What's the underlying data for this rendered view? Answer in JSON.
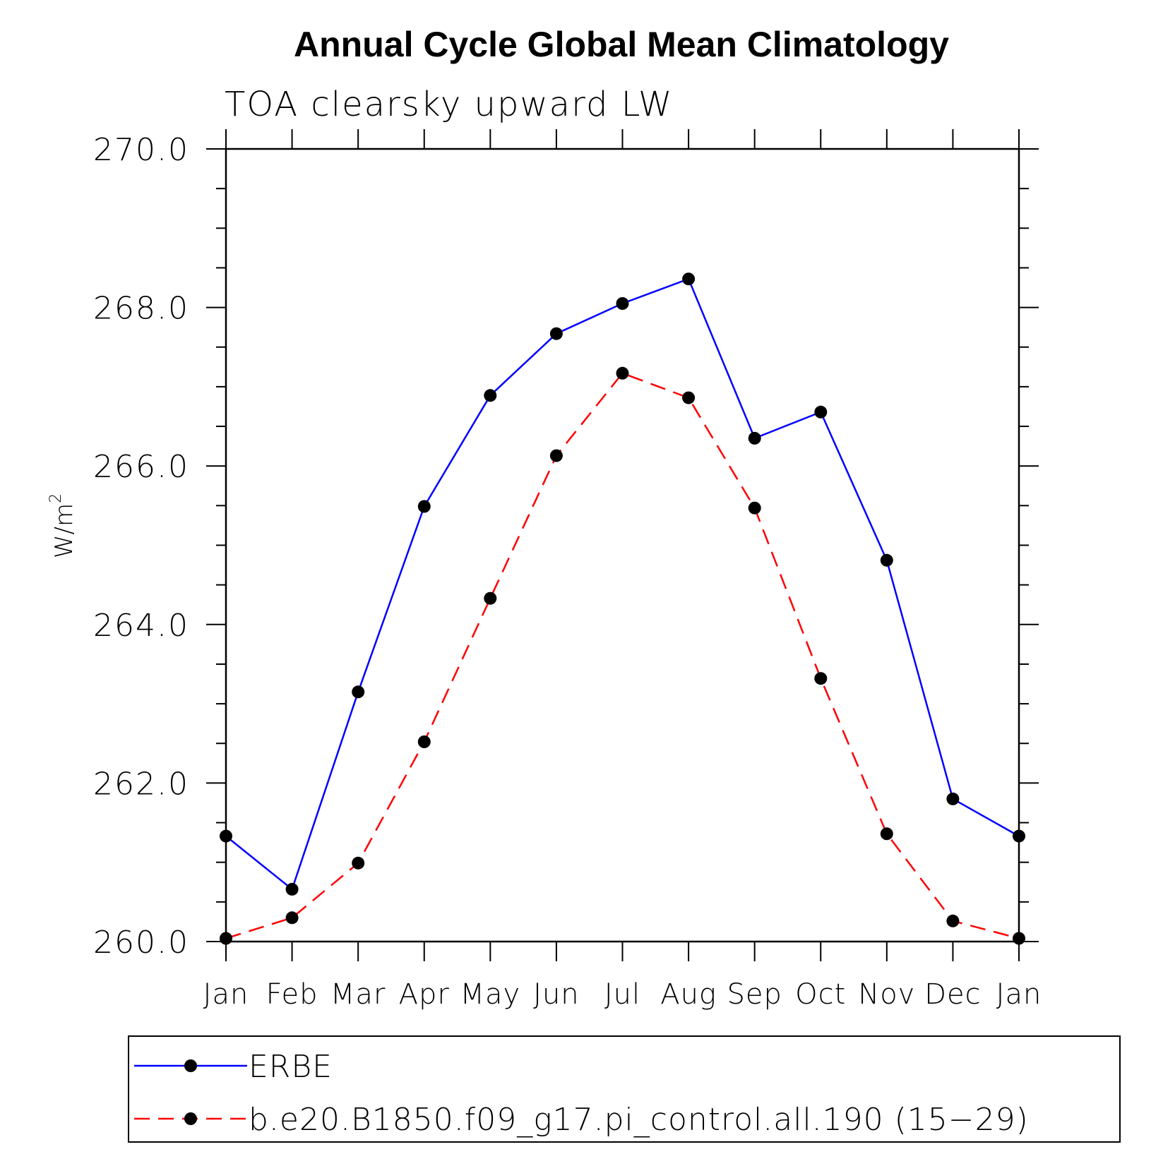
{
  "chart_data": {
    "type": "line",
    "title": "Annual Cycle Global Mean Climatology",
    "subtitle": "TOA clearsky upward LW",
    "ylabel": "W/m",
    "ylabel_superscript": "2",
    "ylim": [
      260.0,
      270.0
    ],
    "yticks": [
      "260.0",
      "262.0",
      "264.0",
      "266.0",
      "268.0",
      "270.0"
    ],
    "categories": [
      "Jan",
      "Feb",
      "Mar",
      "Apr",
      "May",
      "Jun",
      "Jul",
      "Aug",
      "Sep",
      "Oct",
      "Nov",
      "Dec",
      "Jan"
    ],
    "grid": false,
    "legend_position": "bottom",
    "series": [
      {
        "name": "ERBE",
        "color": "#0000ff",
        "line_style": "solid",
        "marker": "filled-circle",
        "values": [
          261.33,
          260.66,
          263.15,
          265.49,
          266.89,
          267.67,
          268.05,
          268.36,
          266.35,
          266.68,
          264.81,
          261.8,
          261.33
        ]
      },
      {
        "name": "b.e20.B1850.f09_g17.pi_control.all.190 (15−29)",
        "color": "#ff0000",
        "line_style": "dashed",
        "marker": "filled-circle",
        "values": [
          260.04,
          260.3,
          260.99,
          262.52,
          264.33,
          266.13,
          267.17,
          266.86,
          265.47,
          263.32,
          261.36,
          260.26,
          260.04
        ]
      }
    ]
  }
}
